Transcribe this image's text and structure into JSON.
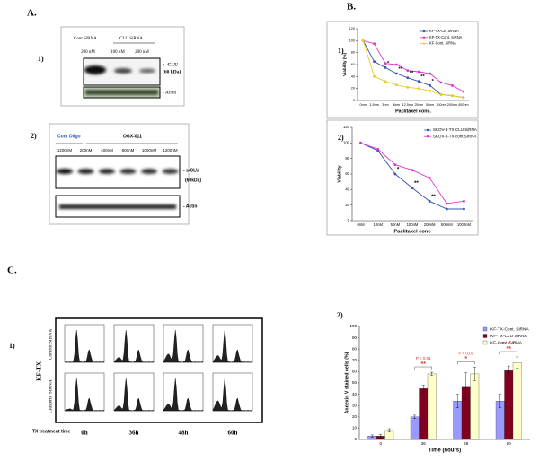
{
  "panel_labels": {
    "a": "A.",
    "b": "B.",
    "c": "C."
  },
  "a1": {
    "number": "1)",
    "lanes_header": [
      "Cont SiRNA",
      "CLU SiRNA"
    ],
    "doses": [
      "200 nM",
      "100 nM",
      "200 nM"
    ],
    "band_label": "s- CLU",
    "band_size": "(60 kDa)",
    "loading_label": "- Actin"
  },
  "a2": {
    "number": "2)",
    "lanes_header": [
      "Cont Oligo",
      "OGX-011"
    ],
    "doses": [
      "1200nM",
      "200nM",
      "400nM",
      "800nM",
      "1000nM",
      "1200nM"
    ],
    "band_label": "- s-CLU",
    "band_size": "(60kDa)",
    "loading_label": "- Actin"
  },
  "b_numbers": [
    "1)",
    "2)"
  ],
  "c1": {
    "number": "1)",
    "group_label": "KF-TX",
    "row_labels": [
      "Control SiRNA",
      "Clusterin SiRNA"
    ],
    "time_label": "TX treatment time",
    "times": [
      "0h",
      "36h",
      "48h",
      "60h"
    ]
  },
  "c2_number": "2)",
  "chart_data": [
    {
      "type": "line",
      "x_label": "Paclitaxel conc.",
      "y_label": "Viability (%)",
      "categories": [
        "0nm",
        "1.5nm",
        "3nm",
        "6nm",
        "12.5nm",
        "25nm",
        "50nm",
        "100nm",
        "200nm",
        "400nm"
      ],
      "ylim": [
        0,
        120
      ],
      "yticks": [
        0,
        20,
        40,
        60,
        80,
        100,
        120
      ],
      "legend": "upper right",
      "series": [
        {
          "name": "KF-TX-Clu SiRNA",
          "color": "#3355aa",
          "values": [
            100,
            65,
            55,
            45,
            38,
            32,
            25,
            10,
            8,
            5
          ]
        },
        {
          "name": "KF-TX-Cont. SiRNA",
          "color": "#dd33cc",
          "values": [
            100,
            95,
            62,
            60,
            50,
            48,
            45,
            30,
            25,
            15
          ]
        },
        {
          "name": "KF-Cont. SiRNA",
          "color": "#e8d020",
          "values": [
            100,
            40,
            32,
            26,
            22,
            20,
            16,
            10,
            8,
            5
          ]
        }
      ],
      "annotations": [
        "*",
        "**",
        "**",
        "**",
        "*"
      ]
    },
    {
      "type": "line",
      "x_label": "Paclitaxel conc",
      "y_label": "Viability",
      "categories": [
        "0nM",
        "10nM",
        "50nM",
        "100nM",
        "200nM",
        "500nM",
        "1000nM"
      ],
      "ylim": [
        0,
        120
      ],
      "yticks": [
        0,
        20,
        40,
        60,
        80,
        100,
        120
      ],
      "legend": "upper right",
      "series": [
        {
          "name": "SKOV-3-TX-CLU SiRNA",
          "color": "#3355aa",
          "values": [
            100,
            90,
            60,
            42,
            25,
            15,
            15
          ]
        },
        {
          "name": "SKOV-3-TX-cont.SiRNA",
          "color": "#dd33cc",
          "values": [
            100,
            92,
            72,
            65,
            55,
            22,
            25
          ]
        }
      ],
      "annotations": [
        "*",
        "**",
        "**"
      ]
    },
    {
      "type": "bar",
      "x_label": "Time (hours)",
      "y_label": "Annexin V stained cells (%)",
      "categories": [
        "0",
        "36",
        "48",
        "60"
      ],
      "ylim": [
        0,
        100
      ],
      "yticks": [
        0,
        10,
        20,
        30,
        40,
        50,
        60,
        70,
        80,
        90,
        100
      ],
      "legend": "upper right",
      "series": [
        {
          "name": "KF-TX-Cont. SiRNA",
          "color": "#9999ff",
          "values": [
            3,
            20,
            34,
            34
          ],
          "errors": [
            1,
            1.5,
            6,
            6
          ]
        },
        {
          "name": "KF-TX-CLU SiRNA",
          "color": "#800020",
          "values": [
            3,
            45,
            47,
            61
          ],
          "errors": [
            1.5,
            3,
            12,
            4
          ]
        },
        {
          "name": "KF-Cont. SiRNA",
          "color": "#ffffcc",
          "values": [
            8,
            58,
            58,
            68
          ],
          "errors": [
            1.5,
            1.5,
            6,
            5
          ]
        }
      ],
      "annotations": [
        {
          "text": "P < 0.01",
          "mark": "**"
        },
        {
          "text": "P < 0.01",
          "mark": "*"
        },
        {
          "text": "P < 0.01",
          "mark": "**"
        }
      ]
    }
  ]
}
